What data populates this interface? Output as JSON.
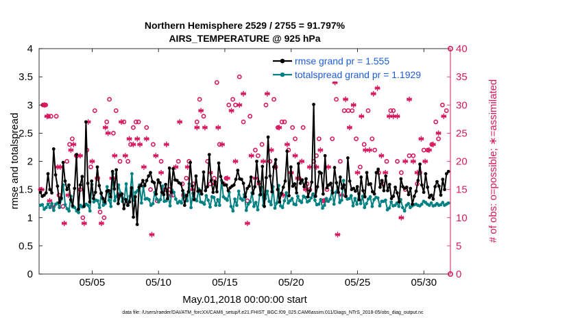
{
  "chart_data": {
    "type": "line",
    "title_line1": "Northern Hemisphere 2529 / 2755 = 91.797%",
    "title_line2": "AIRS_TEMPERATURE @ 925 hPa",
    "xlabel": "May.01,2018 00:00:00 start",
    "ylabel": "rmse and totalspread",
    "y2label": "# of obs: o=possible; ∗=assimilated",
    "footnote": "data file: /Users/raeder/DAI/ATM_forcXX/CAM6_setup/f.e21.FHIST_BGC.f09_025.CAM6assim.011/Diags_NTrS_2018-05/obs_diag_output.nc",
    "xlim": [
      1,
      32
    ],
    "ylim": [
      0,
      4
    ],
    "y2lim": [
      0,
      40
    ],
    "x_ticks": [
      5,
      10,
      15,
      20,
      25,
      30
    ],
    "x_tick_labels": [
      "05/05",
      "05/10",
      "05/15",
      "05/20",
      "05/25",
      "05/30"
    ],
    "y_ticks": [
      "0",
      "0.5",
      "1",
      "1.5",
      "2",
      "2.5",
      "3",
      "3.5",
      "4"
    ],
    "y2_ticks": [
      "0",
      "5",
      "10",
      "15",
      "20",
      "25",
      "30",
      "35",
      "40"
    ],
    "colors": {
      "rmse": "#000000",
      "spread": "#008080",
      "obs": "#d6185e",
      "legend_text": "#1d5bd6"
    },
    "series": [
      {
        "name": "rmse",
        "legend": "rmse grand pr = 1.555",
        "values": [
          1.45,
          1.38,
          1.4,
          1.44,
          1.78,
          1.5,
          1.44,
          2.22,
          1.76,
          1.56,
          1.27,
          1.35,
          1.98,
          1.65,
          1.5,
          1.58,
          1.32,
          1.21,
          1.52,
          2.12,
          1.15,
          1.58,
          1.73,
          1.2,
          2.7,
          1.61,
          1.28,
          1.65,
          1.34,
          1.45,
          1.9,
          1.57,
          1.43,
          1.34,
          1.28,
          1.47,
          1.48,
          1.37,
          1.82,
          1.51,
          1.85,
          1.25,
          1.4,
          1.42,
          1.16,
          1.32,
          1.22,
          1.28,
          1.53,
          1.01,
          1.37,
          0.88,
          1.54,
          1.57,
          1.66,
          1.57,
          1.66,
          1.74,
          1.8,
          1.64,
          1.62,
          1.42,
          1.67,
          1.62,
          1.45,
          1.41,
          1.59,
          1.34,
          1.88,
          1.45,
          1.87,
          1.67,
          1.66,
          1.62,
          1.6,
          1.48,
          1.22,
          1.39,
          1.46,
          1.98,
          1.56,
          1.32,
          1.74,
          1.47,
          1.48,
          1.42,
          1.81,
          1.48,
          1.55,
          2.12,
          1.66,
          1.45,
          1.64,
          1.46,
          1.97,
          1.73,
          1.62,
          1.58,
          1.58,
          1.48,
          1.53,
          1.56,
          1.58,
          1.68,
          1.84,
          1.69,
          1.68,
          1.61,
          1.37,
          1.52,
          1.56,
          1.72,
          1.43,
          1.55,
          2.0,
          1.64,
          1.41,
          1.91,
          1.2,
          1.71,
          2.43,
          1.74,
          1.46,
          1.9,
          2.03,
          1.5,
          1.28,
          1.43,
          1.54,
          1.65,
          2.18,
          1.39,
          1.9,
          1.56,
          1.6,
          1.44,
          1.96,
          1.61,
          1.67,
          1.55,
          1.69,
          1.37,
          1.48,
          1.63,
          3.01,
          1.38,
          1.55,
          1.81,
          1.79,
          1.42,
          2.1,
          1.53,
          1.58,
          1.61,
          1.44,
          1.89,
          1.62,
          1.45,
          1.72,
          1.52,
          1.58,
          1.38,
          2.06,
          1.65,
          1.5,
          1.52,
          1.47,
          1.55,
          1.32,
          1.72,
          1.48,
          1.37,
          1.8,
          1.59,
          1.6,
          1.46,
          1.42,
          1.8,
          1.86,
          1.54,
          1.66,
          1.48,
          1.74,
          1.48,
          1.59,
          1.34,
          1.38,
          1.54,
          1.44,
          1.28,
          1.69,
          1.55,
          1.52,
          1.54,
          1.41,
          1.52,
          1.24,
          1.38,
          1.47,
          1.66,
          1.95,
          1.58,
          1.45,
          1.78,
          1.54,
          1.36,
          1.4,
          1.33,
          1.55,
          1.64,
          1.56,
          1.4,
          1.68,
          1.5,
          1.78,
          1.82
        ]
      },
      {
        "name": "totalspread",
        "legend": "totalspread grand pr = 1.1929",
        "values": [
          1.22,
          1.23,
          1.15,
          1.18,
          1.24,
          1.18,
          1.25,
          1.13,
          1.24,
          1.26,
          1.18,
          1.33,
          1.58,
          1.23,
          1.16,
          1.12,
          1.38,
          1.19,
          1.18,
          1.12,
          1.09,
          1.22,
          1.19,
          1.23,
          1.24,
          1.22,
          1.12,
          1.59,
          1.28,
          1.31,
          1.3,
          1.18,
          1.44,
          1.22,
          1.25,
          1.55,
          1.31,
          1.2,
          1.78,
          1.3,
          1.38,
          1.58,
          1.44,
          1.29,
          1.34,
          1.6,
          1.22,
          1.38,
          1.78,
          1.31,
          1.45,
          1.48,
          1.58,
          1.26,
          1.55,
          1.33,
          1.34,
          1.32,
          1.22,
          1.25,
          1.45,
          1.33,
          1.28,
          1.32,
          1.56,
          1.29,
          1.3,
          1.38,
          1.21,
          1.49,
          1.45,
          1.33,
          1.26,
          1.29,
          1.26,
          1.43,
          1.37,
          1.3,
          1.6,
          1.18,
          1.43,
          1.33,
          1.3,
          1.51,
          1.28,
          1.27,
          1.24,
          1.39,
          1.31,
          1.19,
          1.37,
          1.36,
          1.22,
          1.32,
          1.22,
          1.66,
          1.37,
          1.34,
          1.31,
          1.45,
          1.2,
          1.12,
          1.33,
          1.22,
          1.47,
          1.34,
          1.31,
          1.41,
          1.13,
          1.24,
          1.28,
          1.44,
          1.2,
          1.27,
          1.14,
          1.4,
          1.54,
          1.22,
          1.34,
          1.47,
          1.29,
          1.23,
          1.55,
          1.17,
          1.26,
          1.57,
          1.21,
          1.18,
          1.3,
          1.44,
          1.26,
          1.3,
          1.34,
          1.24,
          1.23,
          1.38,
          1.3,
          1.27,
          1.38,
          1.36,
          1.28,
          1.3,
          1.35,
          1.42,
          1.31,
          1.23,
          1.24,
          1.32,
          1.17,
          1.22,
          1.34,
          1.29,
          1.33,
          1.48,
          1.24,
          1.45,
          1.54,
          1.27,
          1.31,
          1.66,
          1.38,
          1.33,
          1.34,
          1.39,
          1.21,
          1.34,
          1.24,
          1.42,
          1.25,
          1.38,
          1.18,
          1.25,
          1.33,
          1.37,
          1.2,
          1.32,
          1.36,
          1.35,
          1.21,
          1.29,
          1.29,
          1.31,
          1.14,
          1.17,
          1.28,
          1.21,
          1.22,
          1.26,
          1.2,
          1.32,
          1.18,
          1.12,
          1.22,
          1.25,
          1.18,
          1.21,
          1.23,
          1.24,
          1.22,
          1.21,
          1.24,
          1.29,
          1.27,
          1.24,
          1.22,
          1.26,
          1.21,
          1.22,
          1.25,
          1.22,
          1.23,
          1.27,
          1.22,
          1.24,
          1.26
        ]
      }
    ],
    "obs_possible": [
      [
        1.1,
        15
      ],
      [
        1.3,
        30
      ],
      [
        1.5,
        30
      ],
      [
        1.7,
        28
      ],
      [
        1.9,
        28
      ],
      [
        2.3,
        28
      ],
      [
        2.5,
        14
      ],
      [
        2.8,
        12
      ],
      [
        3.1,
        20
      ],
      [
        3.3,
        23
      ],
      [
        3.5,
        24
      ],
      [
        3.8,
        21
      ],
      [
        4.1,
        15
      ],
      [
        4.3,
        10
      ],
      [
        4.6,
        22
      ],
      [
        4.9,
        19
      ],
      [
        5.2,
        29
      ],
      [
        5.6,
        11
      ],
      [
        5.9,
        10
      ],
      [
        6.1,
        27
      ],
      [
        6.3,
        31
      ],
      [
        6.6,
        25
      ],
      [
        6.8,
        29
      ],
      [
        7.1,
        20
      ],
      [
        7.4,
        27
      ],
      [
        7.7,
        20
      ],
      [
        7.9,
        23
      ],
      [
        8.1,
        26
      ],
      [
        8.3,
        27
      ],
      [
        8.5,
        27
      ],
      [
        8.8,
        16
      ],
      [
        9.1,
        26
      ],
      [
        9.4,
        15
      ],
      [
        9.6,
        23
      ],
      [
        9.9,
        13
      ],
      [
        10.2,
        20
      ],
      [
        10.5,
        15
      ],
      [
        10.8,
        15
      ],
      [
        11.1,
        14
      ],
      [
        11.5,
        20
      ],
      [
        11.8,
        16
      ],
      [
        12.1,
        17
      ],
      [
        12.3,
        20
      ],
      [
        12.6,
        16
      ],
      [
        12.9,
        27
      ],
      [
        13.1,
        31
      ],
      [
        13.4,
        28
      ],
      [
        13.7,
        20
      ],
      [
        13.9,
        16
      ],
      [
        14.2,
        17
      ],
      [
        14.4,
        34
      ],
      [
        14.6,
        23
      ],
      [
        14.9,
        16
      ],
      [
        15.1,
        17
      ],
      [
        15.3,
        30
      ],
      [
        15.6,
        31
      ],
      [
        15.8,
        30
      ],
      [
        16.1,
        35
      ],
      [
        16.4,
        27
      ],
      [
        16.7,
        13
      ],
      [
        16.9,
        28
      ],
      [
        17.3,
        22
      ],
      [
        17.5,
        21
      ],
      [
        17.8,
        23
      ],
      [
        18.1,
        30
      ],
      [
        18.4,
        20
      ],
      [
        18.7,
        31
      ],
      [
        19.0,
        26
      ],
      [
        19.3,
        27
      ],
      [
        19.5,
        27
      ],
      [
        19.8,
        22
      ],
      [
        20.1,
        26
      ],
      [
        20.3,
        24
      ],
      [
        20.6,
        17
      ],
      [
        20.9,
        26
      ],
      [
        21.2,
        16
      ],
      [
        21.4,
        15
      ],
      [
        21.7,
        20
      ],
      [
        21.9,
        21
      ],
      [
        22.1,
        24
      ],
      [
        22.4,
        13
      ],
      [
        22.7,
        15
      ],
      [
        23.1,
        24
      ],
      [
        23.4,
        31
      ],
      [
        23.7,
        20
      ],
      [
        24.0,
        29
      ],
      [
        24.3,
        29
      ],
      [
        24.6,
        29
      ],
      [
        24.9,
        24
      ],
      [
        25.2,
        19
      ],
      [
        25.5,
        23
      ],
      [
        25.8,
        29
      ],
      [
        26.1,
        24
      ],
      [
        26.3,
        22
      ],
      [
        26.6,
        18
      ],
      [
        26.9,
        16
      ],
      [
        27.2,
        20
      ],
      [
        27.5,
        29
      ],
      [
        27.7,
        29
      ],
      [
        28.0,
        20
      ],
      [
        28.3,
        18
      ],
      [
        28.6,
        15
      ],
      [
        28.9,
        21
      ],
      [
        29.2,
        21
      ],
      [
        29.5,
        16
      ],
      [
        29.7,
        18
      ],
      [
        30.0,
        22
      ],
      [
        30.3,
        22
      ],
      [
        30.6,
        23
      ],
      [
        30.9,
        27
      ],
      [
        31.1,
        24
      ],
      [
        31.4,
        30
      ],
      [
        31.7,
        29
      ]
    ],
    "obs_assimilated": [
      [
        1.2,
        15
      ],
      [
        1.4,
        30
      ],
      [
        1.6,
        28
      ],
      [
        1.8,
        13
      ],
      [
        2.0,
        12
      ],
      [
        2.4,
        19
      ],
      [
        2.6,
        19
      ],
      [
        2.9,
        9
      ],
      [
        3.2,
        14
      ],
      [
        3.4,
        22
      ],
      [
        3.6,
        23
      ],
      [
        3.9,
        21
      ],
      [
        4.1,
        21
      ],
      [
        4.4,
        9
      ],
      [
        4.7,
        27
      ],
      [
        5.0,
        20
      ],
      [
        5.4,
        17
      ],
      [
        5.7,
        9
      ],
      [
        6.0,
        26
      ],
      [
        6.2,
        25
      ],
      [
        6.5,
        17
      ],
      [
        6.7,
        21
      ],
      [
        7.0,
        14
      ],
      [
        7.2,
        27
      ],
      [
        7.5,
        21
      ],
      [
        7.8,
        24
      ],
      [
        8.1,
        23
      ],
      [
        8.4,
        24
      ],
      [
        8.6,
        23
      ],
      [
        8.9,
        19
      ],
      [
        9.1,
        24
      ],
      [
        9.5,
        7
      ],
      [
        9.8,
        21
      ],
      [
        10.2,
        18
      ],
      [
        10.6,
        23
      ],
      [
        10.9,
        14
      ],
      [
        11.3,
        19
      ],
      [
        11.6,
        27
      ],
      [
        11.9,
        14
      ],
      [
        12.2,
        19
      ],
      [
        12.6,
        15
      ],
      [
        12.9,
        26
      ],
      [
        13.2,
        29
      ],
      [
        13.5,
        26
      ],
      [
        13.9,
        18
      ],
      [
        14.2,
        16
      ],
      [
        14.5,
        26
      ],
      [
        14.8,
        23
      ],
      [
        15.2,
        17
      ],
      [
        15.5,
        29
      ],
      [
        15.8,
        20
      ],
      [
        16.1,
        30
      ],
      [
        16.4,
        32
      ],
      [
        16.7,
        9
      ],
      [
        17.0,
        21
      ],
      [
        17.3,
        17
      ],
      [
        17.6,
        16
      ],
      [
        17.9,
        20
      ],
      [
        18.2,
        32
      ],
      [
        18.5,
        22
      ],
      [
        18.8,
        19
      ],
      [
        19.1,
        26
      ],
      [
        19.4,
        14
      ],
      [
        19.7,
        23
      ],
      [
        20.0,
        18
      ],
      [
        20.3,
        21
      ],
      [
        20.5,
        17
      ],
      [
        20.8,
        20
      ],
      [
        21.1,
        15
      ],
      [
        21.4,
        19
      ],
      [
        21.7,
        14
      ],
      [
        21.9,
        19
      ],
      [
        22.2,
        22
      ],
      [
        22.5,
        13
      ],
      [
        22.8,
        19
      ],
      [
        23.3,
        34
      ],
      [
        23.5,
        7
      ],
      [
        23.8,
        14
      ],
      [
        24.1,
        31
      ],
      [
        24.4,
        26
      ],
      [
        24.7,
        30
      ],
      [
        25.0,
        18
      ],
      [
        25.3,
        28
      ],
      [
        25.6,
        22
      ],
      [
        25.9,
        22
      ],
      [
        26.2,
        32
      ],
      [
        26.5,
        33
      ],
      [
        26.8,
        21
      ],
      [
        27.1,
        18
      ],
      [
        27.4,
        28
      ],
      [
        27.7,
        28
      ],
      [
        28.0,
        28
      ],
      [
        28.3,
        10
      ],
      [
        28.6,
        20
      ],
      [
        28.9,
        31
      ],
      [
        29.2,
        20
      ],
      [
        29.5,
        18
      ],
      [
        29.8,
        24
      ],
      [
        30.1,
        20
      ],
      [
        30.4,
        22
      ],
      [
        30.7,
        23
      ],
      [
        31.1,
        25
      ],
      [
        31.5,
        28
      ]
    ]
  }
}
